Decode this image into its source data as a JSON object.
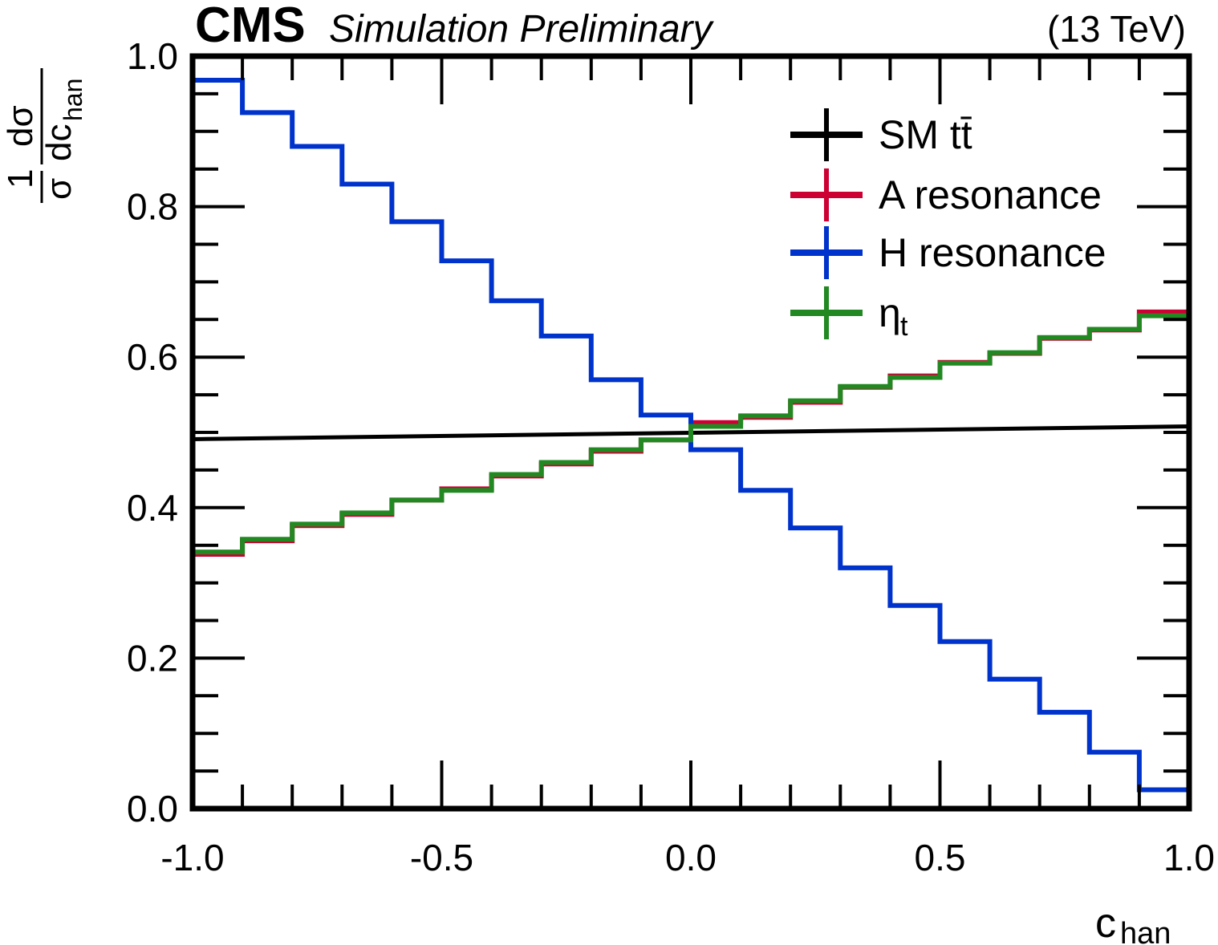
{
  "header": {
    "experiment": "CMS",
    "status": "Simulation Preliminary",
    "energy": "(13 TeV)"
  },
  "chart_data": {
    "type": "step",
    "xlabel": "c",
    "xlabel_sub": "han",
    "ylabel": "1/σ dσ/dc_han",
    "xlim": [
      -1.0,
      1.0
    ],
    "ylim": [
      0.0,
      1.0
    ],
    "x_ticks": [
      "-1.0",
      "-0.5",
      "0.0",
      "0.5",
      "1.0"
    ],
    "y_ticks": [
      "0.0",
      "0.2",
      "0.4",
      "0.6",
      "0.8",
      "1.0"
    ],
    "bin_edges": [
      -1.0,
      -0.9,
      -0.8,
      -0.7,
      -0.6,
      -0.5,
      -0.4,
      -0.3,
      -0.2,
      -0.1,
      0.0,
      0.1,
      0.2,
      0.3,
      0.4,
      0.5,
      0.6,
      0.7,
      0.8,
      0.9,
      1.0
    ],
    "legend_position": "top-right",
    "series": [
      {
        "name": "SM tt̄",
        "color": "#000000",
        "kind": "line",
        "values": [
          0.491,
          0.508
        ]
      },
      {
        "name": "A resonance",
        "color": "#cc0033",
        "kind": "hist",
        "values": [
          0.338,
          0.356,
          0.376,
          0.391,
          0.41,
          0.425,
          0.442,
          0.458,
          0.475,
          0.49,
          0.513,
          0.52,
          0.54,
          0.56,
          0.575,
          0.593,
          0.605,
          0.625,
          0.636,
          0.66
        ]
      },
      {
        "name": "H resonance",
        "color": "#0033cc",
        "kind": "hist",
        "values": [
          0.968,
          0.925,
          0.88,
          0.83,
          0.78,
          0.728,
          0.675,
          0.628,
          0.57,
          0.523,
          0.477,
          0.423,
          0.373,
          0.32,
          0.27,
          0.222,
          0.172,
          0.128,
          0.075,
          0.025
        ]
      },
      {
        "name": "η",
        "name_sub": "t",
        "color": "#228822",
        "kind": "hist",
        "values": [
          0.341,
          0.358,
          0.378,
          0.393,
          0.41,
          0.423,
          0.444,
          0.46,
          0.477,
          0.49,
          0.508,
          0.522,
          0.542,
          0.561,
          0.573,
          0.592,
          0.606,
          0.626,
          0.637,
          0.655
        ]
      }
    ]
  }
}
